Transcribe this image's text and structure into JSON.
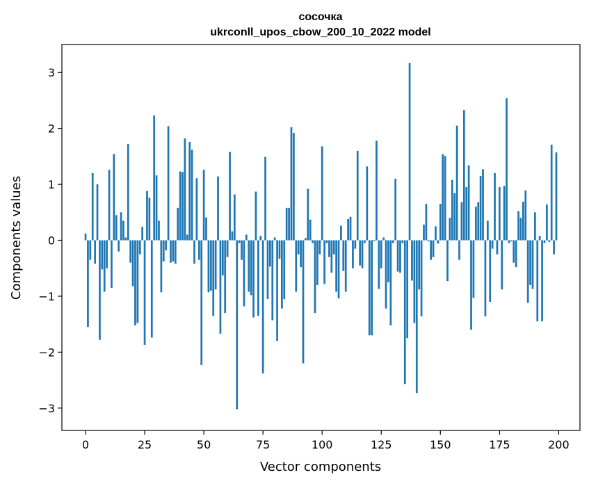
{
  "chart_data": {
    "type": "bar",
    "title": "сосочка",
    "subtitle": "ukrconll_upos_cbow_200_10_2022 model",
    "xlabel": "Vector components",
    "ylabel": "Components values",
    "xlim": [
      -10,
      209
    ],
    "ylim": [
      -3.4,
      3.5
    ],
    "xticks": [
      0,
      25,
      50,
      75,
      100,
      125,
      150,
      175,
      200
    ],
    "yticks": [
      -3,
      -2,
      -1,
      0,
      1,
      2,
      3
    ],
    "grid": false,
    "color": "#1f77b4",
    "x": [
      0,
      1,
      2,
      3,
      4,
      5,
      6,
      7,
      8,
      9,
      10,
      11,
      12,
      13,
      14,
      15,
      16,
      17,
      18,
      19,
      20,
      21,
      22,
      23,
      24,
      25,
      26,
      27,
      28,
      29,
      30,
      31,
      32,
      33,
      34,
      35,
      36,
      37,
      38,
      39,
      40,
      41,
      42,
      43,
      44,
      45,
      46,
      47,
      48,
      49,
      50,
      51,
      52,
      53,
      54,
      55,
      56,
      57,
      58,
      59,
      60,
      61,
      62,
      63,
      64,
      65,
      66,
      67,
      68,
      69,
      70,
      71,
      72,
      73,
      74,
      75,
      76,
      77,
      78,
      79,
      80,
      81,
      82,
      83,
      84,
      85,
      86,
      87,
      88,
      89,
      90,
      91,
      92,
      93,
      94,
      95,
      96,
      97,
      98,
      99,
      100,
      101,
      102,
      103,
      104,
      105,
      106,
      107,
      108,
      109,
      110,
      111,
      112,
      113,
      114,
      115,
      116,
      117,
      118,
      119,
      120,
      121,
      122,
      123,
      124,
      125,
      126,
      127,
      128,
      129,
      130,
      131,
      132,
      133,
      134,
      135,
      136,
      137,
      138,
      139,
      140,
      141,
      142,
      143,
      144,
      145,
      146,
      147,
      148,
      149,
      150,
      151,
      152,
      153,
      154,
      155,
      156,
      157,
      158,
      159,
      160,
      161,
      162,
      163,
      164,
      165,
      166,
      167,
      168,
      169,
      170,
      171,
      172,
      173,
      174,
      175,
      176,
      177,
      178,
      179,
      180,
      181,
      182,
      183,
      184,
      185,
      186,
      187,
      188,
      189,
      190,
      191,
      192,
      193,
      194,
      195,
      196,
      197,
      198,
      199
    ],
    "values": [
      0.12,
      -1.55,
      -0.35,
      1.2,
      -0.42,
      1.0,
      -1.78,
      -0.52,
      -0.92,
      -0.5,
      1.26,
      -0.85,
      1.54,
      0.45,
      -0.2,
      0.5,
      0.35,
      0.05,
      1.72,
      -0.4,
      -0.82,
      -1.52,
      -1.48,
      -0.25,
      0.24,
      -1.87,
      0.88,
      0.76,
      -1.74,
      2.23,
      1.16,
      0.35,
      -0.93,
      -0.38,
      -0.18,
      2.04,
      -0.4,
      -0.38,
      -0.42,
      0.58,
      1.23,
      1.22,
      1.82,
      0.1,
      1.76,
      1.62,
      -0.42,
      1.11,
      -0.35,
      -2.23,
      1.26,
      0.41,
      -0.93,
      -0.9,
      -1.35,
      -0.88,
      1.14,
      -1.67,
      -0.63,
      -1.3,
      -0.3,
      1.58,
      0.16,
      0.82,
      -3.02,
      -0.05,
      -0.35,
      -1.18,
      0.1,
      -0.92,
      -0.98,
      -1.38,
      0.87,
      -1.35,
      0.08,
      -2.38,
      1.49,
      -1.05,
      -0.47,
      -1.43,
      0.05,
      -1.8,
      -0.33,
      -1.22,
      -1.05,
      0.58,
      0.58,
      2.02,
      1.92,
      -0.92,
      -0.25,
      -0.48,
      -2.2,
      0.04,
      0.92,
      0.37,
      -0.05,
      -1.3,
      -0.8,
      -0.25,
      1.68,
      -0.78,
      -0.05,
      -0.3,
      -0.58,
      -0.25,
      -0.92,
      -1.04,
      0.26,
      -0.55,
      -0.92,
      0.38,
      0.42,
      -0.5,
      -0.15,
      1.6,
      -0.45,
      -0.5,
      -0.05,
      1.32,
      -1.7,
      -1.7,
      -0.02,
      1.78,
      -0.87,
      -0.5,
      0.05,
      -1.22,
      -0.75,
      -1.52,
      -0.05,
      1.1,
      -0.56,
      -0.58,
      -0.05,
      -2.57,
      -1.75,
      3.17,
      -0.72,
      -1.48,
      -2.73,
      -0.88,
      -1.36,
      0.28,
      0.65,
      -0.02,
      -0.35,
      -0.3,
      0.25,
      -0.06,
      0.65,
      1.54,
      1.51,
      -0.73,
      0.4,
      1.08,
      0.84,
      2.05,
      -0.35,
      0.68,
      2.33,
      0.95,
      1.34,
      -1.6,
      -1.03,
      0.6,
      0.68,
      1.15,
      1.27,
      -1.36,
      0.35,
      -1.1,
      -0.15,
      1.2,
      -0.25,
      0.95,
      -0.88,
      0.97,
      2.54,
      -0.05,
      -0.02,
      -0.4,
      -0.48,
      0.52,
      0.4,
      0.69,
      0.89,
      -1.12,
      -0.8,
      -0.87,
      0.5,
      -1.45,
      0.08,
      -1.45,
      -0.05,
      0.64,
      -0.03,
      1.71,
      -0.25,
      1.57
    ]
  }
}
